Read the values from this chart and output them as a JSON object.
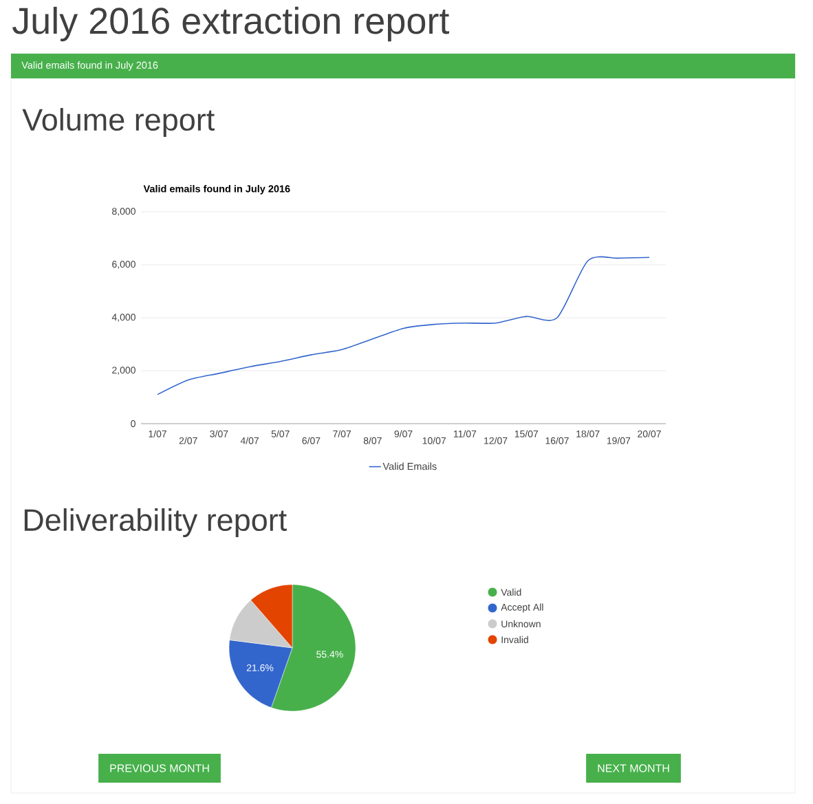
{
  "chart_data": [
    {
      "type": "line",
      "title": "Valid emails found in July 2016",
      "annotations": [
        "July 2016 extraction report",
        "Valid emails found in July 2016",
        "Volume report"
      ],
      "categories": [
        "1/07",
        "2/07",
        "3/07",
        "4/07",
        "5/07",
        "6/07",
        "7/07",
        "8/07",
        "9/07",
        "10/07",
        "11/07",
        "12/07",
        "15/07",
        "16/07",
        "18/07",
        "19/07",
        "20/07"
      ],
      "series": [
        {
          "name": "Valid Emails",
          "color": "#3366cc",
          "values": [
            1100,
            1650,
            1900,
            2150,
            2350,
            2600,
            2800,
            3200,
            3600,
            3750,
            3800,
            3800,
            4050,
            4000,
            6150,
            6250,
            6280
          ]
        }
      ],
      "ylim": [
        0,
        8000
      ],
      "yticks": [
        0,
        {
          "value": 2000,
          "label": "2,000"
        },
        {
          "value": 4000,
          "label": "4,000"
        },
        {
          "value": 6000,
          "label": "6,000"
        },
        {
          "value": 8000,
          "label": "8,000"
        }
      ],
      "grid": "y",
      "legend": "bottom"
    },
    {
      "type": "pie",
      "title": "Deliverability report",
      "annotations": [
        "PREVIOUS MONTH",
        "NEXT MONTH"
      ],
      "categories": [
        "Valid",
        "Accept All",
        "Unknown",
        "Invalid"
      ],
      "values": [
        55.4,
        21.6,
        11.6,
        11.4
      ],
      "colors": [
        "#47b04b",
        "#3366cc",
        "#cccccc",
        "#e34400"
      ],
      "value_labels": [
        "55.4%",
        "21.6%",
        null,
        null
      ],
      "legend": "right"
    }
  ]
}
